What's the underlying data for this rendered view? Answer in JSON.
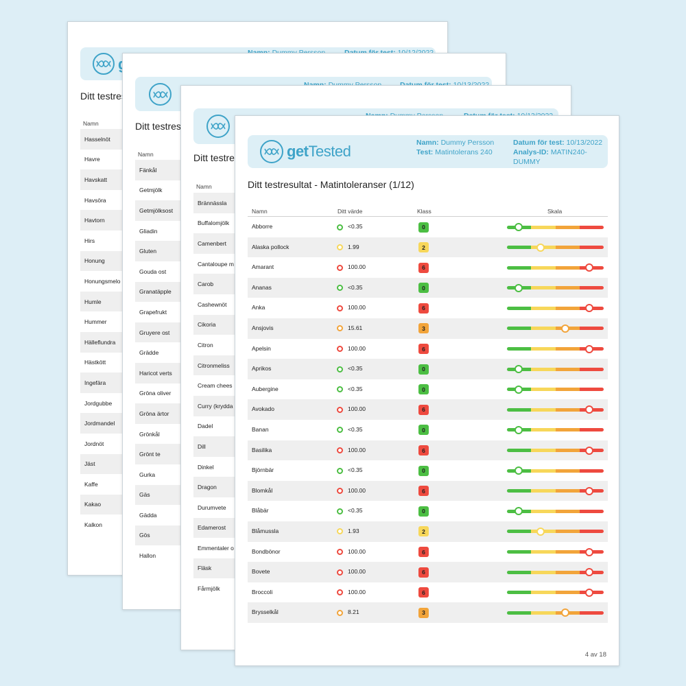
{
  "colors": {
    "background": "#ddeef6",
    "header_bg": "#ddeff6",
    "brand": "#3ea3c8",
    "class0": "#4cbe43",
    "class2": "#f7d75a",
    "class3": "#f2a43a",
    "class6": "#ee4a3f"
  },
  "brand": {
    "part1": "get",
    "part2": "Tested",
    "logo_icon": "dna-helix-icon"
  },
  "meta": {
    "name_label": "Namn:",
    "name_value": "Dummy Persson",
    "test_label": "Test:",
    "test_value": "Matintolerans 240",
    "date_label": "Datum för test:",
    "date_value": "10/13/2022",
    "date_value_p1": "10/12/2022",
    "analysis_label": "Analys-ID:",
    "analysis_value": "MATIN240-DUMMY"
  },
  "title_prefix": "Ditt testres",
  "columns": {
    "name": "Namn",
    "value": "Ditt värde",
    "class": "Klass",
    "scale": "Skala"
  },
  "page1": {
    "rows": [
      "Hasselnöt",
      "Havre",
      "Havskatt",
      "Havsöra",
      "Havtorn",
      "Hirs",
      "Honung",
      "Honungsmelo",
      "Humle",
      "Hummer",
      "Hälleflundra",
      "Hästkött",
      "Ingefära",
      "Jordgubbe",
      "Jordmandel",
      "Jordnöt",
      "Jäst",
      "Kaffe",
      "Kakao",
      "Kalkon"
    ]
  },
  "page2": {
    "rows": [
      "Fänkål",
      "Getmjölk",
      "Getmjölksost",
      "Gliadin",
      "Gluten",
      "Gouda ost",
      "Granatäpple",
      "Grapefrukt",
      "Gruyere ost",
      "Grädde",
      "Haricot verts",
      "Gröna oliver",
      "Gröna ärtor",
      "Grönkål",
      "Grönt te",
      "Gurka",
      "Gäs",
      "Gädda",
      "Gös",
      "Hallon"
    ]
  },
  "page3": {
    "rows": [
      "Brännässla",
      "Buffalomjölk",
      "Camenbert",
      "Cantaloupe m",
      "Carob",
      "Cashewnöt",
      "Cikoria",
      "Citron",
      "Citronmeliss",
      "Cream chees",
      "Curry (krydda",
      "Dadel",
      "Dill",
      "Dinkel",
      "Dragon",
      "Durumvete",
      "Edamerost",
      "Emmentaler o",
      "Fläsk",
      "Fårmjölk"
    ]
  },
  "front": {
    "title": "Ditt testresultat - Matintoleranser (1/12)",
    "footer": "4 av 18",
    "rows": [
      {
        "name": "Abborre",
        "value": "<0.35",
        "klass": "0"
      },
      {
        "name": "Alaska pollock",
        "value": "1.99",
        "klass": "2"
      },
      {
        "name": "Amarant",
        "value": "100.00",
        "klass": "6"
      },
      {
        "name": "Ananas",
        "value": "<0.35",
        "klass": "0"
      },
      {
        "name": "Anka",
        "value": "100.00",
        "klass": "6"
      },
      {
        "name": "Ansjovis",
        "value": "15.61",
        "klass": "3"
      },
      {
        "name": "Apelsin",
        "value": "100.00",
        "klass": "6"
      },
      {
        "name": "Aprikos",
        "value": "<0.35",
        "klass": "0"
      },
      {
        "name": "Aubergine",
        "value": "<0.35",
        "klass": "0"
      },
      {
        "name": "Avokado",
        "value": "100.00",
        "klass": "6"
      },
      {
        "name": "Banan",
        "value": "<0.35",
        "klass": "0"
      },
      {
        "name": "Basilika",
        "value": "100.00",
        "klass": "6"
      },
      {
        "name": "Björnbär",
        "value": "<0.35",
        "klass": "0"
      },
      {
        "name": "Blomkål",
        "value": "100.00",
        "klass": "6"
      },
      {
        "name": "Blåbär",
        "value": "<0.35",
        "klass": "0"
      },
      {
        "name": "Blåmussla",
        "value": "1.93",
        "klass": "2"
      },
      {
        "name": "Bondbönor",
        "value": "100.00",
        "klass": "6"
      },
      {
        "name": "Bovete",
        "value": "100.00",
        "klass": "6"
      },
      {
        "name": "Broccoli",
        "value": "100.00",
        "klass": "6"
      },
      {
        "name": "Brysselkål",
        "value": "8.21",
        "klass": "3"
      }
    ]
  }
}
